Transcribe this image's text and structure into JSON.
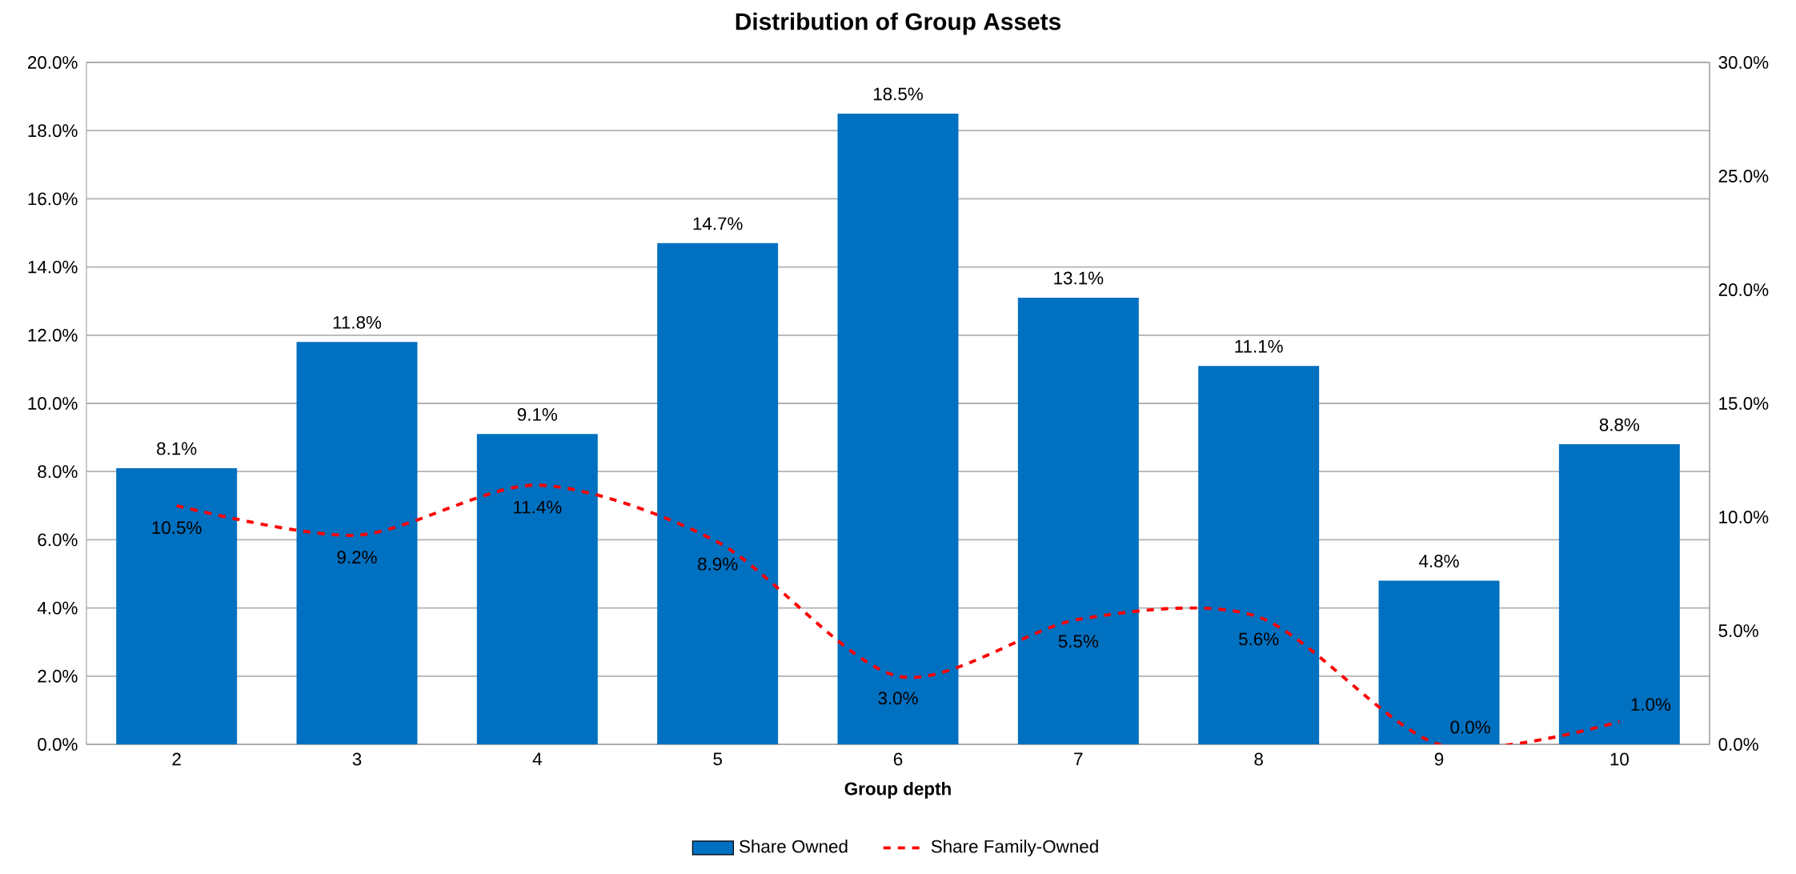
{
  "chart_data": {
    "type": "bar",
    "title": "Distribution of Group Assets",
    "xlabel": "Group depth",
    "categories": [
      "2",
      "3",
      "4",
      "5",
      "6",
      "7",
      "8",
      "9",
      "10"
    ],
    "series": [
      {
        "name": "Share Owned",
        "color": "#0070c0",
        "values": [
          8.1,
          11.8,
          9.1,
          14.7,
          18.5,
          13.1,
          11.1,
          4.8,
          8.8
        ],
        "value_labels": [
          "8.1%",
          "11.8%",
          "9.1%",
          "14.7%",
          "18.5%",
          "13.1%",
          "11.1%",
          "4.8%",
          "8.8%"
        ]
      },
      {
        "name": "Share Family-Owned",
        "type": "line",
        "axis": "y2",
        "color": "#ff0000",
        "line_style": "dashed",
        "values": [
          10.5,
          9.2,
          11.4,
          8.9,
          3.0,
          5.5,
          5.6,
          0.0,
          1.0
        ],
        "value_labels": [
          "10.5%",
          "9.2%",
          "11.4%",
          "8.9%",
          "3.0%",
          "5.5%",
          "5.6%",
          "0.0%",
          "1.0%"
        ]
      }
    ],
    "ylim": [
      0,
      20
    ],
    "yticks": [
      {
        "value": 0,
        "label": "0.0%"
      },
      {
        "value": 2,
        "label": "2.0%"
      },
      {
        "value": 4,
        "label": "4.0%"
      },
      {
        "value": 6,
        "label": "6.0%"
      },
      {
        "value": 8,
        "label": "8.0%"
      },
      {
        "value": 10,
        "label": "10.0%"
      },
      {
        "value": 12,
        "label": "12.0%"
      },
      {
        "value": 14,
        "label": "14.0%"
      },
      {
        "value": 16,
        "label": "16.0%"
      },
      {
        "value": 18,
        "label": "18.0%"
      },
      {
        "value": 20,
        "label": "20.0%"
      }
    ],
    "y2lim": [
      0,
      30
    ],
    "y2ticks": [
      {
        "value": 0,
        "label": "0.0%"
      },
      {
        "value": 5,
        "label": "5.0%"
      },
      {
        "value": 10,
        "label": "10.0%"
      },
      {
        "value": 15,
        "label": "15.0%"
      },
      {
        "value": 20,
        "label": "20.0%"
      },
      {
        "value": 25,
        "label": "25.0%"
      },
      {
        "value": 30,
        "label": "30.0%"
      }
    ],
    "grid": "y",
    "legend": "bottom"
  }
}
